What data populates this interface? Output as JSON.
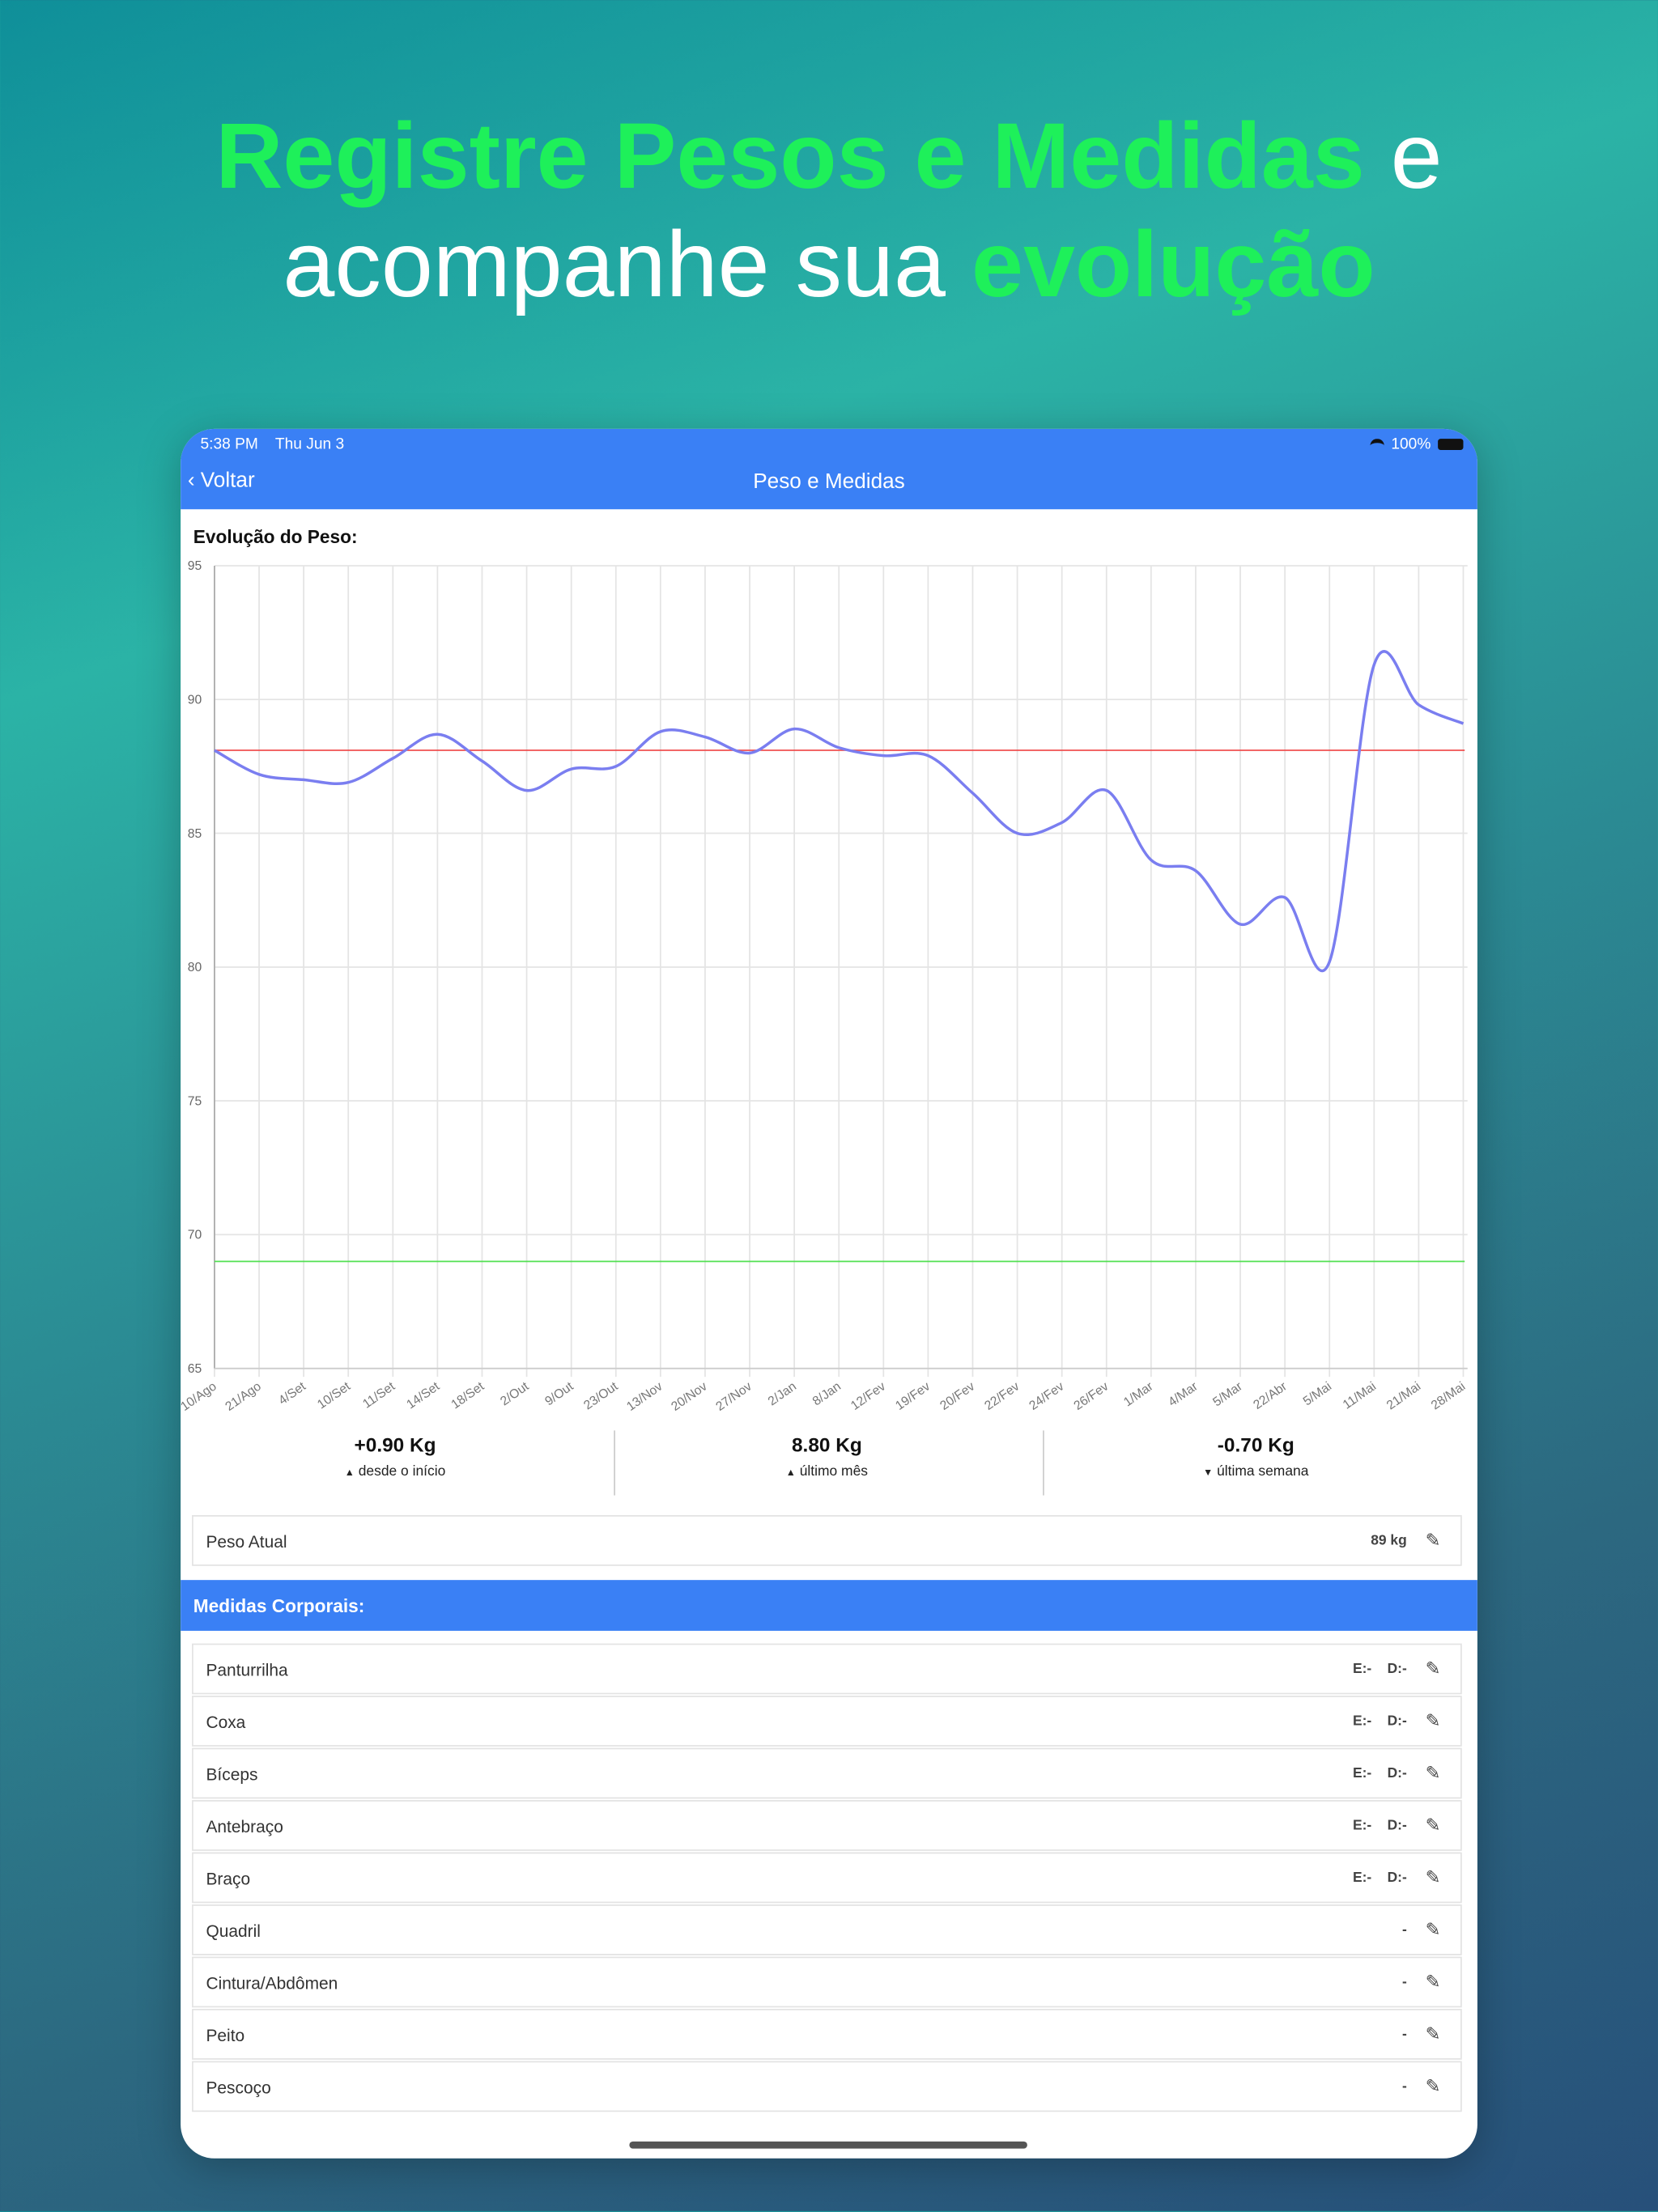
{
  "headline": {
    "line1_highlight": "Registre Pesos e Medidas",
    "line1_rest": " e",
    "line2_rest": "acompanhe sua ",
    "line2_highlight": "evolução"
  },
  "status_bar": {
    "time": "5:38 PM",
    "date": "Thu Jun 3",
    "battery": "100%",
    "icons": [
      "wifi-icon",
      "battery-icon"
    ]
  },
  "nav": {
    "back_label": "Voltar",
    "title": "Peso e Medidas"
  },
  "chart_title": "Evolução do Peso:",
  "chart_data": {
    "type": "line",
    "categories": [
      "10/Ago",
      "21/Ago",
      "4/Set",
      "10/Set",
      "11/Set",
      "14/Set",
      "18/Set",
      "2/Out",
      "9/Out",
      "23/Out",
      "13/Nov",
      "20/Nov",
      "27/Nov",
      "2/Jan",
      "8/Jan",
      "12/Fev",
      "19/Fev",
      "20/Fev",
      "22/Fev",
      "24/Fev",
      "26/Fev",
      "1/Mar",
      "4/Mar",
      "5/Mar",
      "22/Abr",
      "5/Mai",
      "11/Mai",
      "21/Mai",
      "28/Mai"
    ],
    "values": [
      88.1,
      87.2,
      87.0,
      86.9,
      87.8,
      88.7,
      87.7,
      86.6,
      87.4,
      87.5,
      88.8,
      88.6,
      88.0,
      88.9,
      88.2,
      87.9,
      87.9,
      86.5,
      85.0,
      85.4,
      86.6,
      84.0,
      83.6,
      81.6,
      82.6,
      80.2,
      91.3,
      89.8,
      89.1
    ],
    "yticks": [
      65,
      70,
      75,
      80,
      85,
      90,
      95
    ],
    "ylim": [
      65,
      95
    ],
    "grid": true,
    "reference_lines": [
      {
        "value": 88.1,
        "color": "#f05050"
      },
      {
        "value": 69,
        "color": "#50e050"
      }
    ],
    "line_color": "#7a7ef0"
  },
  "stats": [
    {
      "value": "+0.90 Kg",
      "arrow": "▲",
      "label": "desde o início"
    },
    {
      "value": "8.80 Kg",
      "arrow": "▲",
      "label": "último mês"
    },
    {
      "value": "-0.70 Kg",
      "arrow": "▼",
      "label": "última semana"
    }
  ],
  "current_weight": {
    "label": "Peso Atual",
    "value": "89 kg"
  },
  "section_title": "Medidas Corporais:",
  "measures": [
    {
      "name": "Panturrilha",
      "value": "E:-    D:-"
    },
    {
      "name": "Coxa",
      "value": "E:-    D:-"
    },
    {
      "name": "Bíceps",
      "value": "E:-    D:-"
    },
    {
      "name": "Antebraço",
      "value": "E:-    D:-"
    },
    {
      "name": "Braço",
      "value": "E:-    D:-"
    },
    {
      "name": "Quadril",
      "value": "-"
    },
    {
      "name": "Cintura/Abdômen",
      "value": "-"
    },
    {
      "name": "Peito",
      "value": "-"
    },
    {
      "name": "Pescoço",
      "value": "-"
    }
  ],
  "colors": {
    "accent": "#3a80f5",
    "headline_highlight": "#1ef05a"
  }
}
